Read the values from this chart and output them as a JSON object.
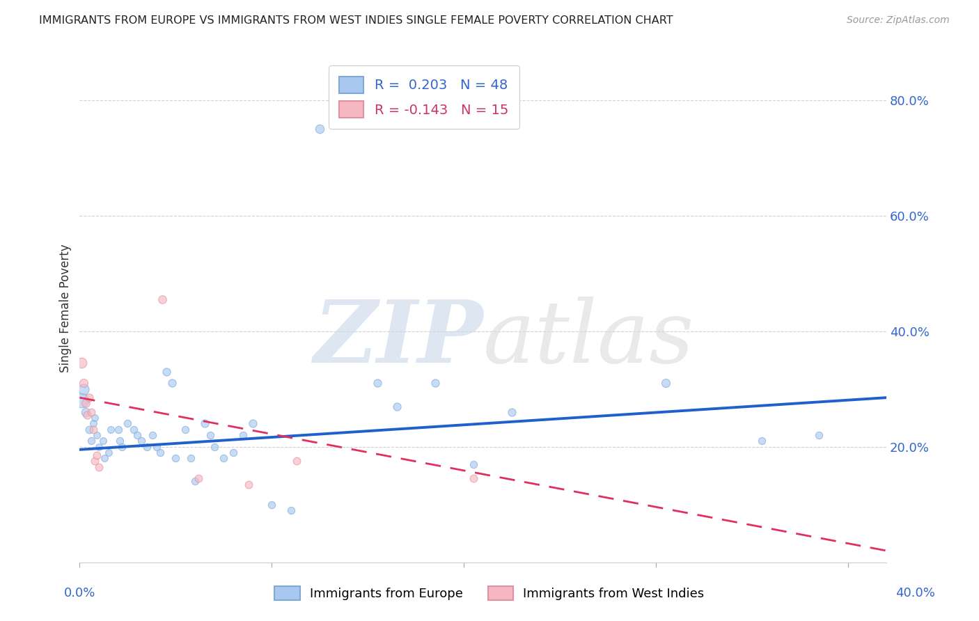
{
  "title": "IMMIGRANTS FROM EUROPE VS IMMIGRANTS FROM WEST INDIES SINGLE FEMALE POVERTY CORRELATION CHART",
  "source": "Source: ZipAtlas.com",
  "ylabel": "Single Female Poverty",
  "y_ticks": [
    0.0,
    0.2,
    0.4,
    0.6,
    0.8
  ],
  "y_tick_labels": [
    "",
    "20.0%",
    "40.0%",
    "60.0%",
    "80.0%"
  ],
  "xlim": [
    0.0,
    0.42
  ],
  "ylim": [
    0.0,
    0.88
  ],
  "legend_r1": "R =  0.203   N = 48",
  "legend_r2": "R = -0.143   N = 15",
  "blue_color": "#a8c8f0",
  "pink_color": "#f5b8c0",
  "blue_line_color": "#2060cc",
  "pink_line_color": "#e03060",
  "watermark_zip": "ZIP",
  "watermark_atlas": "atlas",
  "blue_points": [
    [
      0.001,
      0.28,
      220
    ],
    [
      0.002,
      0.3,
      120
    ],
    [
      0.003,
      0.26,
      80
    ],
    [
      0.005,
      0.23,
      60
    ],
    [
      0.006,
      0.21,
      55
    ],
    [
      0.007,
      0.24,
      50
    ],
    [
      0.008,
      0.25,
      50
    ],
    [
      0.009,
      0.22,
      50
    ],
    [
      0.01,
      0.2,
      50
    ],
    [
      0.012,
      0.21,
      50
    ],
    [
      0.013,
      0.18,
      50
    ],
    [
      0.015,
      0.19,
      50
    ],
    [
      0.016,
      0.23,
      50
    ],
    [
      0.02,
      0.23,
      55
    ],
    [
      0.021,
      0.21,
      55
    ],
    [
      0.022,
      0.2,
      55
    ],
    [
      0.025,
      0.24,
      55
    ],
    [
      0.028,
      0.23,
      55
    ],
    [
      0.03,
      0.22,
      55
    ],
    [
      0.032,
      0.21,
      55
    ],
    [
      0.035,
      0.2,
      55
    ],
    [
      0.038,
      0.22,
      55
    ],
    [
      0.04,
      0.2,
      55
    ],
    [
      0.042,
      0.19,
      55
    ],
    [
      0.045,
      0.33,
      65
    ],
    [
      0.048,
      0.31,
      65
    ],
    [
      0.05,
      0.18,
      55
    ],
    [
      0.055,
      0.23,
      55
    ],
    [
      0.058,
      0.18,
      55
    ],
    [
      0.06,
      0.14,
      55
    ],
    [
      0.065,
      0.24,
      65
    ],
    [
      0.068,
      0.22,
      55
    ],
    [
      0.07,
      0.2,
      55
    ],
    [
      0.075,
      0.18,
      55
    ],
    [
      0.08,
      0.19,
      55
    ],
    [
      0.085,
      0.22,
      55
    ],
    [
      0.09,
      0.24,
      65
    ],
    [
      0.1,
      0.1,
      55
    ],
    [
      0.11,
      0.09,
      55
    ],
    [
      0.125,
      0.75,
      80
    ],
    [
      0.155,
      0.31,
      65
    ],
    [
      0.165,
      0.27,
      65
    ],
    [
      0.185,
      0.31,
      65
    ],
    [
      0.205,
      0.17,
      55
    ],
    [
      0.225,
      0.26,
      65
    ],
    [
      0.305,
      0.31,
      75
    ],
    [
      0.355,
      0.21,
      55
    ],
    [
      0.385,
      0.22,
      55
    ]
  ],
  "pink_points": [
    [
      0.001,
      0.345,
      110
    ],
    [
      0.002,
      0.31,
      75
    ],
    [
      0.003,
      0.275,
      70
    ],
    [
      0.004,
      0.255,
      65
    ],
    [
      0.005,
      0.285,
      65
    ],
    [
      0.006,
      0.26,
      60
    ],
    [
      0.007,
      0.23,
      60
    ],
    [
      0.008,
      0.175,
      60
    ],
    [
      0.009,
      0.185,
      60
    ],
    [
      0.01,
      0.165,
      60
    ],
    [
      0.043,
      0.455,
      70
    ],
    [
      0.062,
      0.145,
      60
    ],
    [
      0.088,
      0.135,
      60
    ],
    [
      0.113,
      0.175,
      60
    ],
    [
      0.205,
      0.145,
      60
    ]
  ],
  "blue_trend_x": [
    0.0,
    0.42
  ],
  "blue_trend_y": [
    0.195,
    0.285
  ],
  "pink_trend_x": [
    0.0,
    0.42
  ],
  "pink_trend_y": [
    0.285,
    0.02
  ]
}
